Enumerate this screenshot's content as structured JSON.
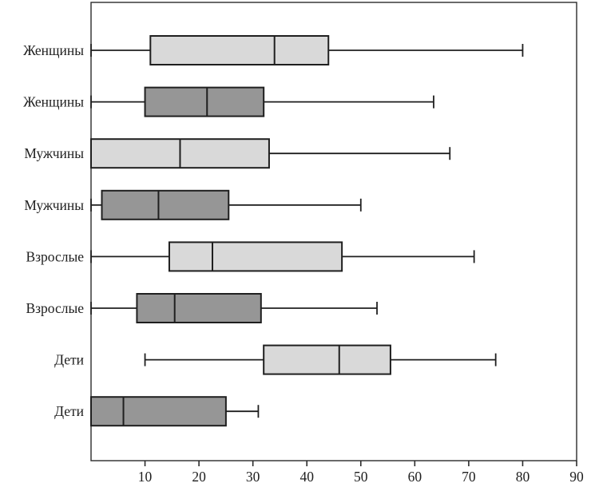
{
  "chart_data": {
    "type": "boxplot",
    "orientation": "horizontal",
    "title": "",
    "xlabel": "",
    "ylabel": "",
    "grid": false,
    "legend": "none",
    "x_axis": {
      "min": 0,
      "max": 90,
      "ticks": [
        10,
        20,
        30,
        40,
        50,
        60,
        70,
        80,
        90
      ]
    },
    "colors": {
      "light_box_fill": "#d9d9d9",
      "dark_box_fill": "#969696",
      "stroke": "#1f1f1f",
      "frame": "#2b2b2b",
      "text": "#1e1e1e",
      "background": "#ffffff"
    },
    "rows": [
      {
        "label": "Женщины",
        "variant": "light",
        "whisker_min": 0,
        "q1": 11,
        "median": 34,
        "q3": 44,
        "whisker_max": 80
      },
      {
        "label": "Женщины",
        "variant": "dark",
        "whisker_min": 0,
        "q1": 10,
        "median": 21.5,
        "q3": 32,
        "whisker_max": 63.5
      },
      {
        "label": "Мужчины",
        "variant": "light",
        "whisker_min": 0,
        "q1": 0,
        "median": 16.5,
        "q3": 33,
        "whisker_max": 66.5
      },
      {
        "label": "Мужчины",
        "variant": "dark",
        "whisker_min": 0,
        "q1": 2,
        "median": 12.5,
        "q3": 25.5,
        "whisker_max": 50
      },
      {
        "label": "Взрослые",
        "variant": "light",
        "whisker_min": 0,
        "q1": 14.5,
        "median": 22.5,
        "q3": 46.5,
        "whisker_max": 71
      },
      {
        "label": "Взрослые",
        "variant": "dark",
        "whisker_min": 0,
        "q1": 8.5,
        "median": 15.5,
        "q3": 31.5,
        "whisker_max": 53
      },
      {
        "label": "Дети",
        "variant": "light",
        "whisker_min": 10,
        "q1": 32,
        "median": 46,
        "q3": 55.5,
        "whisker_max": 75
      },
      {
        "label": "Дети",
        "variant": "dark",
        "whisker_min": 0,
        "q1": 0,
        "median": 6,
        "q3": 25,
        "whisker_max": 31
      }
    ]
  }
}
